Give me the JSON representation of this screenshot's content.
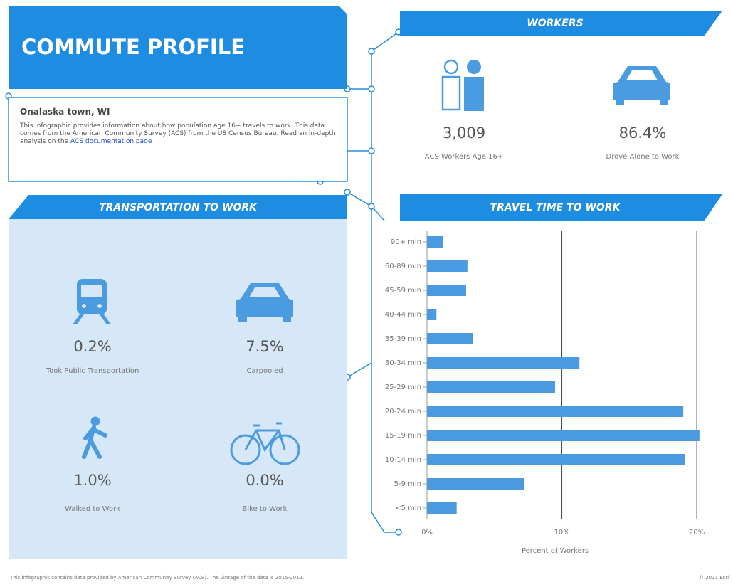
{
  "header": {
    "title": "COMMUTE PROFILE"
  },
  "info": {
    "location": "Onalaska town, WI",
    "description": "This infographic provides information about how population age 16+ travels to work. This data comes from the American Community Survey (ACS) from the US Census Bureau. Read an in-depth analysis on the",
    "link": "ACS documentation page"
  },
  "workers": {
    "title": "WORKERS",
    "items": [
      {
        "value": "3,009",
        "label": "ACS Workers Age 16+"
      },
      {
        "value": "86.4%",
        "label": "Drove Alone to Work"
      }
    ]
  },
  "transportation": {
    "title": "TRANSPORTATION TO WORK",
    "items": [
      {
        "value": "0.2%",
        "label": "Took Public Transportation"
      },
      {
        "value": "7.5%",
        "label": "Carpooled"
      },
      {
        "value": "1.0%",
        "label": "Walked to Work"
      },
      {
        "value": "0.0%",
        "label": "Bike to Work"
      }
    ]
  },
  "chart_data": {
    "type": "hbar",
    "title": "TRAVEL TIME TO WORK",
    "x_label": "Percent of Workers",
    "color": "#4a9be0",
    "categories": [
      "90+ min",
      "60-89 min",
      "45-59 min",
      "40-44 min",
      "35-39 min",
      "30-34 min",
      "25-29 min",
      "20-24 min",
      "15-19 min",
      "10-14 min",
      "5-9 min",
      "<5 min"
    ],
    "values": [
      1.2,
      3.0,
      2.9,
      0.7,
      3.4,
      11.3,
      9.5,
      19.0,
      20.2,
      19.1,
      7.2,
      2.2
    ],
    "xlim": [
      0,
      22
    ],
    "xticks": [
      {
        "value": 0,
        "label": "0%"
      },
      {
        "value": 10,
        "label": "10%"
      },
      {
        "value": 20,
        "label": "20%"
      }
    ],
    "grid": true
  },
  "footer": {
    "note": "This infographic contains data provided by American Community Survey (ACS). The vintage of the data is 2015-2019.",
    "copyright": "© 2021 Esri"
  }
}
